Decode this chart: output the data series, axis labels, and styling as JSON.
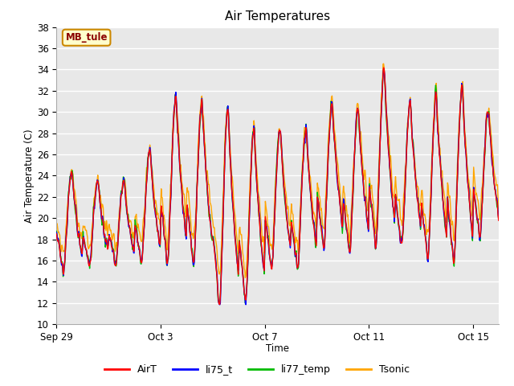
{
  "title": "Air Temperatures",
  "xlabel": "Time",
  "ylabel": "Air Temperature (C)",
  "ylim": [
    10,
    38
  ],
  "yticks": [
    10,
    12,
    14,
    16,
    18,
    20,
    22,
    24,
    26,
    28,
    30,
    32,
    34,
    36,
    38
  ],
  "colors": {
    "AirT": "#ff0000",
    "li75_t": "#0000ff",
    "li77_temp": "#00bb00",
    "Tsonic": "#ffa500"
  },
  "legend_labels": [
    "AirT",
    "li75_t",
    "li77_temp",
    "Tsonic"
  ],
  "annotation_text": "MB_tule",
  "annotation_bg": "#ffffcc",
  "annotation_border": "#cc8800",
  "plot_bg": "#e8e8e8",
  "grid_color": "#ffffff",
  "linewidth": 1.0,
  "xtick_labels": [
    "Sep 29",
    "Oct 3",
    "Oct 7",
    "Oct 11",
    "Oct 15"
  ],
  "day_peaks": [
    24.5,
    23.5,
    23.5,
    26.5,
    31.5,
    31.0,
    30.5,
    28.5,
    28.5,
    28.5,
    31.0,
    30.5,
    34.0,
    31.0,
    31.5,
    32.5,
    30.5,
    29.0
  ],
  "day_mins": [
    14.8,
    15.5,
    15.5,
    15.5,
    15.5,
    15.5,
    11.5,
    12.0,
    15.0,
    15.0,
    17.0,
    16.5,
    17.0,
    17.0,
    15.8,
    15.8,
    18.0,
    17.5
  ],
  "tsonic_extra": [
    1.5,
    1.5,
    1.5,
    2.0,
    2.0,
    2.5,
    2.5,
    2.5,
    2.0,
    2.0,
    2.0,
    2.0,
    2.0,
    2.0,
    2.0,
    2.0,
    2.0,
    2.0
  ],
  "pts_per_day": 48,
  "n_days": 17,
  "seed": 17
}
